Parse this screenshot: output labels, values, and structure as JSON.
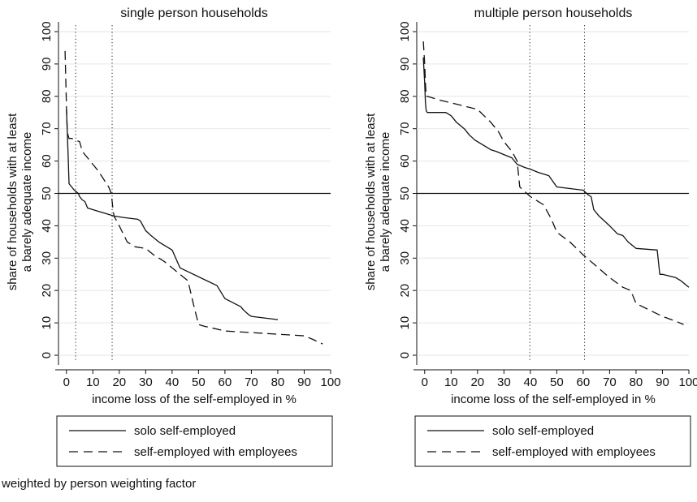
{
  "footnote": "weighted by person weighting factor",
  "axis_text": {
    "ylabel_line1": "share of households with at least",
    "ylabel_line2": "a barely adequate income",
    "xlabel": "income loss of the self-employed in %"
  },
  "legend": {
    "solo": "solo self-employed",
    "employees": "self-employed with employees"
  },
  "chart_data": [
    {
      "type": "line",
      "title": "single person households",
      "xlabel": "income loss of the self-employed in %",
      "ylabel": "share of households with at least a barely adequate income",
      "xlim": [
        -3,
        100
      ],
      "ylim": [
        -2,
        102
      ],
      "xticks": [
        0,
        10,
        20,
        30,
        40,
        50,
        60,
        70,
        80,
        90,
        100
      ],
      "yticks": [
        0,
        10,
        20,
        30,
        40,
        50,
        60,
        70,
        80,
        90,
        100
      ],
      "grid": true,
      "reference_hline": 50,
      "reference_vlines": [
        3.5,
        17.3
      ],
      "series": [
        {
          "name": "solo self-employed",
          "style": "solid",
          "x": [
            0,
            0.3,
            0.6,
            1,
            1.5,
            3,
            4.5,
            5,
            6,
            7,
            8,
            18,
            22,
            27,
            28,
            30,
            32,
            35,
            40,
            43,
            57,
            60,
            66,
            67,
            69,
            70,
            80
          ],
          "y": [
            76,
            70,
            63,
            53,
            52.5,
            51,
            50,
            49,
            48,
            47.5,
            45.5,
            43,
            42.5,
            42,
            41.5,
            38.5,
            37,
            35,
            32.5,
            27,
            21.5,
            17.5,
            15,
            14,
            12.5,
            12,
            11
          ]
        },
        {
          "name": "self-employed with employees",
          "style": "dash",
          "x": [
            -0.5,
            0,
            0.3,
            0.6,
            1,
            2,
            5,
            6,
            7,
            8,
            10,
            12,
            16,
            17,
            17.5,
            18,
            20,
            23,
            26,
            30,
            33,
            37,
            40,
            43,
            46,
            48,
            50,
            52,
            60,
            70,
            80,
            90,
            93,
            97
          ],
          "y": [
            94,
            77,
            70,
            68,
            67,
            67,
            66,
            63,
            62,
            61,
            59,
            57,
            52,
            50,
            46,
            43,
            40,
            35,
            33.5,
            33,
            31,
            29,
            27,
            25,
            23,
            16,
            9.5,
            9,
            7.5,
            7,
            6.5,
            6,
            5,
            3.5
          ]
        }
      ],
      "legend_position": "bottom"
    },
    {
      "type": "line",
      "title": "multiple person households",
      "xlabel": "income loss of the self-employed in %",
      "ylabel": "share of households with at least a barely adequate income",
      "xlim": [
        -3,
        100
      ],
      "ylim": [
        -2,
        102
      ],
      "xticks": [
        0,
        10,
        20,
        30,
        40,
        50,
        60,
        70,
        80,
        90,
        100
      ],
      "yticks": [
        0,
        10,
        20,
        30,
        40,
        50,
        60,
        70,
        80,
        90,
        100
      ],
      "grid": true,
      "reference_hline": 50,
      "reference_vlines": [
        39.8,
        60.5
      ],
      "series": [
        {
          "name": "solo self-employed",
          "style": "solid",
          "x": [
            -0.5,
            0,
            0.3,
            0.6,
            1,
            8,
            10,
            12,
            15,
            17,
            19,
            20,
            23,
            25,
            27,
            30,
            33,
            35,
            38,
            40,
            43,
            47,
            50,
            55,
            60,
            62,
            63,
            64,
            66,
            70,
            73,
            75,
            77,
            80,
            88,
            89,
            90,
            95,
            97,
            100
          ],
          "y": [
            92,
            84,
            78,
            75.5,
            75,
            75,
            74,
            72,
            70,
            68,
            66.5,
            66,
            64.5,
            63.5,
            63,
            62,
            61,
            59,
            58,
            57.5,
            56.5,
            55.5,
            52,
            51.5,
            51,
            49.5,
            49,
            45,
            43,
            40,
            37.5,
            37,
            35,
            33,
            32.5,
            25,
            25,
            24,
            23,
            21
          ]
        },
        {
          "name": "self-employed with employees",
          "style": "dash",
          "x": [
            -0.5,
            0,
            0.3,
            0.6,
            1,
            5,
            10,
            15,
            20,
            25,
            28,
            30,
            33,
            35,
            36,
            40,
            42,
            45,
            48,
            50,
            55,
            60,
            65,
            70,
            75,
            78,
            80,
            85,
            90,
            95,
            98
          ],
          "y": [
            97,
            90,
            84,
            80,
            80,
            79,
            78,
            77,
            76,
            72,
            69,
            66,
            63,
            60,
            52,
            49,
            48,
            46.5,
            42,
            38,
            35,
            31,
            27.5,
            24,
            21,
            20,
            16,
            14,
            12,
            10.5,
            9.5
          ]
        }
      ],
      "legend_position": "bottom"
    }
  ]
}
